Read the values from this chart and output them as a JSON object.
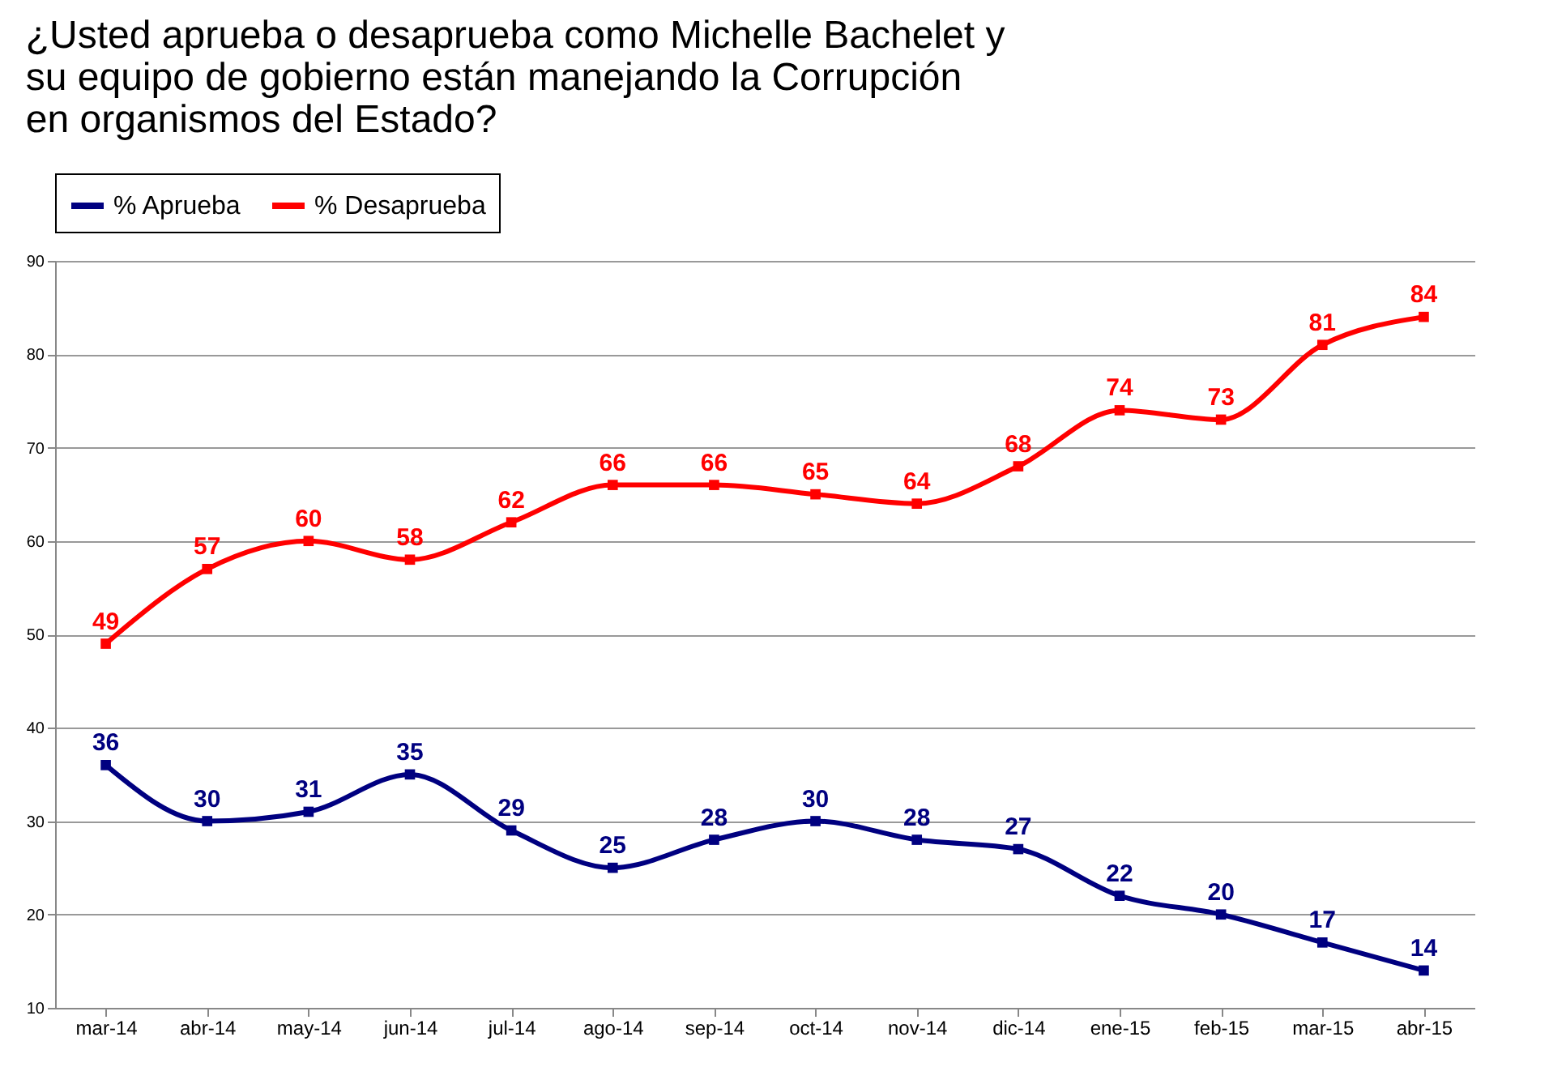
{
  "chart_data": {
    "type": "line",
    "title": "¿Usted aprueba o desaprueba como Michelle Bachelet y su equipo de gobierno están manejando la Corrupción en organismos del Estado?",
    "categories": [
      "mar-14",
      "abr-14",
      "may-14",
      "jun-14",
      "jul-14",
      "ago-14",
      "sep-14",
      "oct-14",
      "nov-14",
      "dic-14",
      "ene-15",
      "feb-15",
      "mar-15",
      "abr-15"
    ],
    "series": [
      {
        "name": "% Aprueba",
        "color": "#000080",
        "values": [
          36,
          30,
          31,
          35,
          29,
          25,
          28,
          30,
          28,
          27,
          22,
          20,
          17,
          14
        ]
      },
      {
        "name": "% Desaprueba",
        "color": "#ff0000",
        "values": [
          49,
          57,
          60,
          58,
          62,
          66,
          66,
          65,
          64,
          68,
          74,
          73,
          81,
          84
        ]
      }
    ],
    "ylim": [
      10,
      90
    ],
    "yticks": [
      10,
      20,
      30,
      40,
      50,
      60,
      70,
      80,
      90
    ],
    "grid": "y",
    "legend": "top",
    "marker": "square",
    "line_style": "solid",
    "data_labels": true
  }
}
